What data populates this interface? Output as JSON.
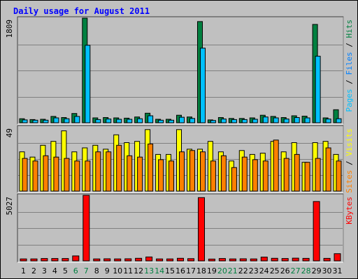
{
  "title": "Daily usage for August 2011",
  "colors": {
    "background": "#c0c0c0",
    "panel": "#c0c0c0",
    "pages": "#00805c",
    "files": "#00c0ff",
    "hits": "#008040",
    "sites": "#ffff00",
    "visits": "#ff8000",
    "kbytes": "#ff0000",
    "title": "#0000ff",
    "weekend_label": "#008040",
    "weekday_label": "#000000"
  },
  "chart_data": [
    {
      "type": "bar",
      "name": "hits-files-pages",
      "ymax_label": "1809",
      "legend": [
        {
          "text": "Pages",
          "color": "#00c0ff"
        },
        {
          "text": " / ",
          "color": "#000000"
        },
        {
          "text": "Files",
          "color": "#0080ff"
        },
        {
          "text": " / ",
          "color": "#000000"
        },
        {
          "text": "Hits",
          "color": "#008040"
        }
      ],
      "ylim": [
        0,
        1809
      ],
      "series": [
        {
          "name": "Hits",
          "values": [
            70,
            55,
            60,
            110,
            90,
            160,
            1809,
            85,
            90,
            85,
            80,
            100,
            165,
            60,
            60,
            130,
            100,
            1750,
            50,
            90,
            75,
            75,
            85,
            130,
            110,
            90,
            120,
            115,
            1700,
            85,
            225
          ]
        },
        {
          "name": "Files",
          "values": [
            50,
            45,
            45,
            85,
            70,
            110,
            1340,
            55,
            65,
            60,
            60,
            70,
            120,
            45,
            45,
            95,
            75,
            1290,
            40,
            65,
            55,
            55,
            60,
            100,
            85,
            65,
            90,
            85,
            1150,
            65,
            70
          ]
        }
      ]
    },
    {
      "type": "bar",
      "name": "visits-sites",
      "ymax_label": "49",
      "legend": [
        {
          "text": "Sites",
          "color": "#ff8000"
        },
        {
          "text": " / ",
          "color": "#000000"
        },
        {
          "text": "Visits",
          "color": "#ffff00"
        }
      ],
      "ylim": [
        0,
        49
      ],
      "series": [
        {
          "name": "Visits",
          "values": [
            30,
            26,
            35,
            38,
            46,
            30,
            33,
            35,
            32,
            43,
            37,
            38,
            47,
            28,
            28,
            47,
            32,
            32,
            38,
            30,
            23,
            31,
            28,
            29,
            38,
            30,
            37,
            22,
            37,
            38,
            28
          ]
        },
        {
          "name": "Sites",
          "values": [
            25,
            23,
            27,
            26,
            25,
            23,
            23,
            30,
            30,
            35,
            27,
            26,
            36,
            24,
            23,
            30,
            31,
            30,
            23,
            27,
            18,
            26,
            24,
            23,
            39,
            25,
            28,
            22,
            25,
            33,
            23
          ]
        }
      ]
    },
    {
      "type": "bar",
      "name": "kbytes",
      "ymax_label": "5027",
      "legend": [
        {
          "text": "KBytes",
          "color": "#ff0000"
        }
      ],
      "ylim": [
        0,
        5027
      ],
      "series": [
        {
          "name": "KBytes",
          "values": [
            150,
            150,
            180,
            180,
            180,
            380,
            5027,
            150,
            160,
            150,
            160,
            200,
            300,
            150,
            150,
            200,
            170,
            4850,
            140,
            180,
            150,
            160,
            150,
            290,
            200,
            180,
            210,
            190,
            4550,
            190,
            550
          ]
        }
      ]
    }
  ],
  "days": [
    "1",
    "2",
    "3",
    "4",
    "5",
    "6",
    "7",
    "8",
    "9",
    "10",
    "11",
    "12",
    "13",
    "14",
    "15",
    "16",
    "17",
    "18",
    "19",
    "20",
    "21",
    "22",
    "23",
    "24",
    "25",
    "26",
    "27",
    "28",
    "29",
    "30",
    "31"
  ],
  "weekend_days": [
    "6",
    "7",
    "13",
    "14",
    "20",
    "21",
    "27",
    "28"
  ]
}
